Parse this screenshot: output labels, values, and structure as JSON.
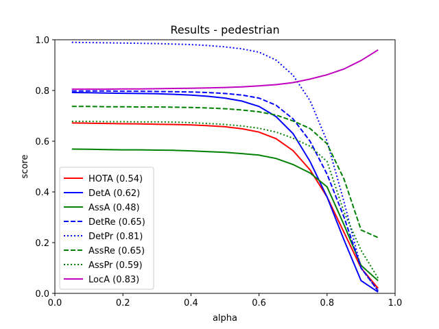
{
  "chart_data": {
    "type": "line",
    "title": "Results - pedestrian",
    "xlabel": "alpha",
    "ylabel": "score",
    "xlim": [
      0,
      1
    ],
    "ylim": [
      0,
      1
    ],
    "xticks": [
      "0.0",
      "0.2",
      "0.4",
      "0.6",
      "0.8",
      "1.0"
    ],
    "yticks": [
      "0.0",
      "0.2",
      "0.4",
      "0.6",
      "0.8",
      "1.0"
    ],
    "legend_position": "lower-left",
    "grid": false,
    "x": [
      0.05,
      0.1,
      0.15,
      0.2,
      0.25,
      0.3,
      0.35,
      0.4,
      0.45,
      0.5,
      0.55,
      0.6,
      0.65,
      0.7,
      0.75,
      0.8,
      0.85,
      0.9,
      0.95
    ],
    "series": [
      {
        "name": "HOTA (0.54)",
        "color": "#ff0000",
        "dash": "solid",
        "values": [
          0.672,
          0.671,
          0.67,
          0.669,
          0.668,
          0.667,
          0.666,
          0.664,
          0.661,
          0.657,
          0.649,
          0.636,
          0.61,
          0.563,
          0.487,
          0.38,
          0.24,
          0.1,
          0.02
        ]
      },
      {
        "name": "DetA (0.62)",
        "color": "#0000ff",
        "dash": "solid",
        "values": [
          0.792,
          0.791,
          0.79,
          0.789,
          0.788,
          0.787,
          0.785,
          0.782,
          0.777,
          0.77,
          0.758,
          0.737,
          0.697,
          0.63,
          0.52,
          0.38,
          0.21,
          0.05,
          0.005
        ]
      },
      {
        "name": "AssA (0.48)",
        "color": "#008000",
        "dash": "solid",
        "values": [
          0.569,
          0.568,
          0.567,
          0.566,
          0.566,
          0.565,
          0.564,
          0.562,
          0.559,
          0.556,
          0.551,
          0.545,
          0.532,
          0.508,
          0.475,
          0.42,
          0.27,
          0.11,
          0.05
        ]
      },
      {
        "name": "DetRe (0.65)",
        "color": "#0000ff",
        "dash": "dashed",
        "values": [
          0.798,
          0.798,
          0.798,
          0.797,
          0.797,
          0.796,
          0.795,
          0.794,
          0.792,
          0.788,
          0.782,
          0.77,
          0.742,
          0.688,
          0.6,
          0.47,
          0.3,
          0.1,
          0.01
        ]
      },
      {
        "name": "DetPr (0.81)",
        "color": "#0000ff",
        "dash": "dotted",
        "values": [
          0.99,
          0.989,
          0.988,
          0.987,
          0.986,
          0.985,
          0.983,
          0.981,
          0.977,
          0.972,
          0.964,
          0.951,
          0.92,
          0.86,
          0.76,
          0.6,
          0.36,
          0.1,
          0.01
        ]
      },
      {
        "name": "AssRe (0.65)",
        "color": "#008000",
        "dash": "dashed",
        "values": [
          0.737,
          0.737,
          0.736,
          0.736,
          0.735,
          0.735,
          0.734,
          0.733,
          0.731,
          0.728,
          0.723,
          0.716,
          0.703,
          0.68,
          0.65,
          0.59,
          0.45,
          0.25,
          0.22
        ]
      },
      {
        "name": "AssPr (0.59)",
        "color": "#008000",
        "dash": "dotted",
        "values": [
          0.678,
          0.678,
          0.677,
          0.677,
          0.676,
          0.676,
          0.675,
          0.673,
          0.67,
          0.666,
          0.66,
          0.651,
          0.636,
          0.612,
          0.58,
          0.52,
          0.32,
          0.17,
          0.06
        ]
      },
      {
        "name": "LocA (0.83)",
        "color": "#bf00bf",
        "dash": "solid",
        "values": [
          0.805,
          0.805,
          0.805,
          0.806,
          0.806,
          0.807,
          0.808,
          0.809,
          0.81,
          0.812,
          0.814,
          0.818,
          0.823,
          0.831,
          0.845,
          0.862,
          0.885,
          0.918,
          0.96
        ]
      }
    ]
  }
}
